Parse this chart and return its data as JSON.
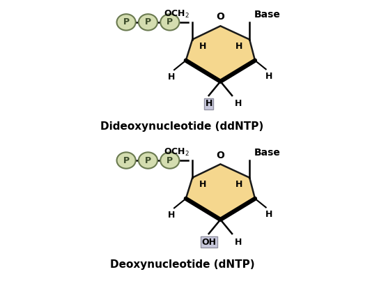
{
  "bg_color": "#ffffff",
  "sugar_fill": "#f5d78e",
  "sugar_edge": "#1a1a1a",
  "p_circle_fill": "#d4ddb0",
  "p_circle_edge": "#6a7a50",
  "highlight_fill": "#c8c8dc",
  "highlight_edge": "#9090a0",
  "title1": "Dideoxynucleotide (ddNTP)",
  "title2": "Deoxynucleotide (dNTP)",
  "bottom1": "H",
  "bottom2": "OH",
  "fig_width": 5.44,
  "fig_height": 4.03,
  "dpi": 100
}
